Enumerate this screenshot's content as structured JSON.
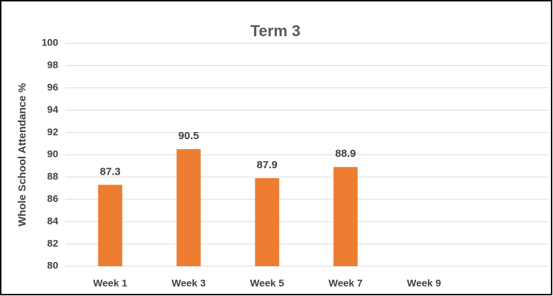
{
  "chart_data": {
    "type": "bar",
    "title": "Term  3",
    "y_label": "Whole School Attendance %",
    "categories": [
      "Week 1",
      "Week 3",
      "Week 5",
      "Week 7",
      "Week 9"
    ],
    "values": [
      87.3,
      90.5,
      87.9,
      88.9,
      null
    ],
    "color": "#ed7d31",
    "ylim": [
      80,
      100
    ],
    "yticks": [
      80,
      82,
      84,
      86,
      88,
      90,
      92,
      94,
      96,
      98,
      100
    ],
    "grid": true
  }
}
